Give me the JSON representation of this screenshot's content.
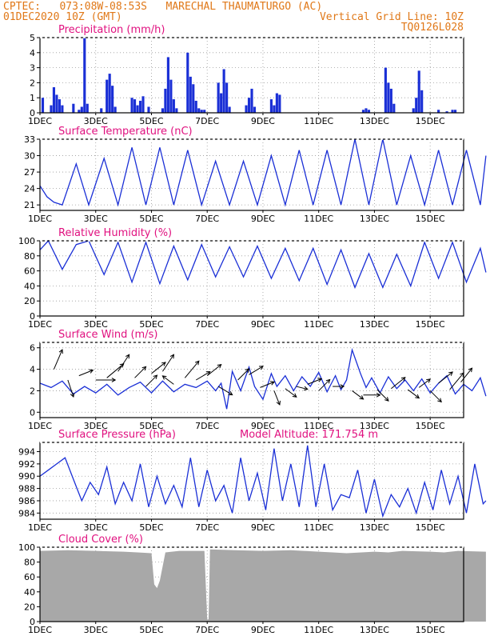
{
  "header": {
    "line1": "CPTEC:   073:08W-08:53S   MARECHAL THAUMATURGO (AC)",
    "line2_left": "01DEC2020 10Z (GMT)",
    "line2_right": "Vertical Grid Line: 10Z",
    "line3_right": "TQ0126L028"
  },
  "extra_label": "Model Altitude: 171.754  m",
  "colors": {
    "header": "#e07818",
    "title": "#e0107f",
    "series": "#1a2fd6",
    "bar": "#1a2fd6",
    "cloud": "#a8a8a8",
    "grid": "#9a9a9a"
  },
  "x_ticks": [
    "1DEC",
    "3DEC",
    "5DEC",
    "7DEC",
    "9DEC",
    "11DEC",
    "13DEC",
    "15DEC"
  ],
  "chart_data": [
    {
      "id": "precip",
      "type": "bar",
      "title": "Precipitation (mm/h)",
      "ylim": [
        0,
        5
      ],
      "yticks": [
        0,
        1,
        2,
        3,
        4,
        5
      ],
      "x": [
        0.1,
        0.4,
        0.5,
        0.6,
        0.7,
        0.8,
        1.2,
        1.4,
        1.5,
        1.6,
        1.7,
        2.2,
        2.4,
        2.5,
        2.6,
        2.7,
        3.3,
        3.4,
        3.5,
        3.6,
        3.7,
        3.9,
        4.4,
        4.5,
        4.6,
        4.7,
        4.8,
        4.9,
        5.3,
        5.4,
        5.5,
        5.6,
        5.7,
        5.8,
        5.9,
        6.4,
        6.5,
        6.6,
        6.7,
        6.8,
        7.4,
        7.5,
        7.6,
        7.7,
        8.3,
        8.4,
        8.5,
        8.6,
        11.6,
        11.7,
        11.8,
        12.4,
        12.5,
        12.6,
        12.7,
        13.4,
        13.5,
        13.6,
        13.7,
        14.3,
        14.6,
        14.8,
        14.9
      ],
      "values": [
        1.0,
        0.5,
        1.7,
        1.2,
        0.9,
        0.5,
        0.6,
        0.2,
        0.4,
        5.0,
        0.6,
        0.3,
        2.2,
        2.6,
        1.8,
        0.4,
        1.0,
        0.9,
        0.5,
        0.8,
        1.1,
        0.4,
        0.3,
        1.6,
        3.7,
        2.2,
        0.9,
        0.3,
        4.0,
        2.4,
        1.9,
        0.8,
        0.3,
        0.2,
        0.2,
        2.0,
        1.3,
        2.9,
        2.0,
        0.4,
        0.5,
        1.0,
        1.6,
        0.4,
        0.9,
        0.5,
        1.3,
        1.2,
        0.2,
        0.3,
        0.2,
        3.0,
        2.0,
        1.6,
        0.6,
        0.3,
        1.0,
        2.8,
        1.5,
        0.2,
        0.1,
        0.2,
        0.2
      ]
    },
    {
      "id": "temp",
      "type": "line",
      "title": "Surface Temperature (nC)",
      "ylim": [
        20,
        33
      ],
      "yticks": [
        21,
        24,
        27,
        30,
        33
      ],
      "x": [
        0,
        0.25,
        0.5,
        0.8,
        1.3,
        1.75,
        2.3,
        2.8,
        3.3,
        3.8,
        4.3,
        4.8,
        5.3,
        5.8,
        6.3,
        6.8,
        7.3,
        7.8,
        8.3,
        8.8,
        9.3,
        9.8,
        10.3,
        10.8,
        11.3,
        11.8,
        12.3,
        12.8,
        13.3,
        13.8,
        14.3,
        14.8,
        15.3,
        15.8,
        16
      ],
      "values": [
        24.5,
        22.5,
        21.5,
        21,
        28.5,
        21,
        29.5,
        21,
        31.5,
        21,
        31.5,
        21,
        31,
        21,
        29,
        21,
        29,
        21,
        30,
        21,
        31,
        21,
        31,
        21,
        33,
        21,
        33,
        21,
        30,
        21,
        31,
        21,
        31,
        21,
        30
      ]
    },
    {
      "id": "rh",
      "type": "line",
      "title": "Relative Humidity (%)",
      "ylim": [
        0,
        100
      ],
      "yticks": [
        0,
        20,
        40,
        60,
        80,
        100
      ],
      "x": [
        0,
        0.3,
        0.8,
        1.3,
        1.75,
        2.3,
        2.8,
        3.3,
        3.8,
        4.3,
        4.8,
        5.3,
        5.8,
        6.3,
        6.8,
        7.3,
        7.8,
        8.3,
        8.8,
        9.3,
        9.8,
        10.3,
        10.8,
        11.3,
        11.8,
        12.3,
        12.8,
        13.3,
        13.8,
        14.3,
        14.8,
        15.3,
        15.8,
        16
      ],
      "values": [
        88,
        100,
        62,
        95,
        100,
        55,
        98,
        45,
        98,
        43,
        93,
        48,
        95,
        52,
        92,
        52,
        93,
        50,
        90,
        47,
        90,
        42,
        88,
        38,
        83,
        38,
        82,
        40,
        98,
        50,
        98,
        45,
        90,
        58
      ]
    },
    {
      "id": "wind",
      "type": "line",
      "title": "Surface Wind (m/s)",
      "ylim": [
        -0.5,
        6.5
      ],
      "yticks": [
        0,
        2,
        4,
        6
      ],
      "x": [
        0,
        0.4,
        0.8,
        1.2,
        1.6,
        2.0,
        2.4,
        2.8,
        3.2,
        3.6,
        4.0,
        4.4,
        4.8,
        5.2,
        5.6,
        6.0,
        6.3,
        6.5,
        6.7,
        6.9,
        7.2,
        7.5,
        7.7,
        8.0,
        8.3,
        8.5,
        8.8,
        9.1,
        9.4,
        9.7,
        10.0,
        10.3,
        10.6,
        10.8,
        11.0,
        11.2,
        11.5,
        11.7,
        11.9,
        12.2,
        12.5,
        12.8,
        13.1,
        13.4,
        13.7,
        14.0,
        14.3,
        14.6,
        14.9,
        15.2,
        15.5,
        15.8,
        16.0
      ],
      "values": [
        2.7,
        2.3,
        2.9,
        1.7,
        2.4,
        1.8,
        2.6,
        1.6,
        2.3,
        2.8,
        1.8,
        2.9,
        1.9,
        2.6,
        2.3,
        2.9,
        2.0,
        2.7,
        0.3,
        3.8,
        2.0,
        4.2,
        2.4,
        1.2,
        3.6,
        2.4,
        3.4,
        2.0,
        3.3,
        2.4,
        3.7,
        1.9,
        3.4,
        2.1,
        3.0,
        5.8,
        3.6,
        2.3,
        3.2,
        1.8,
        3.3,
        2.2,
        3.0,
        2.0,
        3.1,
        1.8,
        2.7,
        3.4,
        1.7,
        2.6,
        2.0,
        3.2,
        1.5
      ]
    },
    {
      "id": "pres",
      "type": "line",
      "title": "Surface Pressure (hPa)",
      "ylim": [
        983,
        995.5
      ],
      "yticks": [
        984,
        986,
        988,
        990,
        992,
        994
      ],
      "x": [
        0,
        0.3,
        0.6,
        0.9,
        1.2,
        1.5,
        1.8,
        2.1,
        2.4,
        2.7,
        3.0,
        3.3,
        3.6,
        3.9,
        4.2,
        4.5,
        4.8,
        5.1,
        5.4,
        5.7,
        6.0,
        6.3,
        6.6,
        6.9,
        7.2,
        7.5,
        7.8,
        8.1,
        8.4,
        8.7,
        9.0,
        9.3,
        9.6,
        9.9,
        10.2,
        10.5,
        10.8,
        11.1,
        11.4,
        11.7,
        12.0,
        12.3,
        12.6,
        12.9,
        13.2,
        13.5,
        13.8,
        14.1,
        14.4,
        14.7,
        15.0,
        15.3,
        15.6,
        15.9,
        16.0
      ],
      "values": [
        990,
        991,
        992,
        993,
        989.5,
        986,
        989,
        987,
        991.5,
        985.5,
        989,
        986,
        992,
        985,
        990,
        985.5,
        988.5,
        985,
        993,
        985,
        991,
        986,
        988.5,
        984,
        993,
        986,
        990.5,
        984.5,
        994.5,
        986,
        992,
        985,
        995,
        985,
        992,
        984.5,
        987,
        986.5,
        991,
        984,
        989.5,
        983.5,
        987,
        985,
        988,
        984,
        989,
        984.5,
        991,
        985.5,
        990,
        984,
        992,
        985.5,
        986
      ]
    },
    {
      "id": "cloud",
      "type": "area",
      "title": "Cloud Cover (%)",
      "ylim": [
        0,
        100
      ],
      "yticks": [
        0,
        20,
        40,
        60,
        80,
        100
      ],
      "x": [
        0,
        1,
        2,
        3,
        3.5,
        4.0,
        4.1,
        4.2,
        4.3,
        4.5,
        5,
        5.9,
        6.0,
        6.05,
        6.1,
        7,
        8,
        9,
        10,
        10.5,
        11,
        12,
        12.5,
        13,
        14,
        14.5,
        15,
        16
      ],
      "values": [
        95,
        96,
        95,
        94,
        93,
        92,
        50,
        45,
        55,
        93,
        95,
        95,
        3,
        3,
        97,
        96,
        95,
        96,
        94,
        93,
        92,
        94,
        93,
        95,
        94,
        93,
        95,
        94
      ]
    }
  ]
}
